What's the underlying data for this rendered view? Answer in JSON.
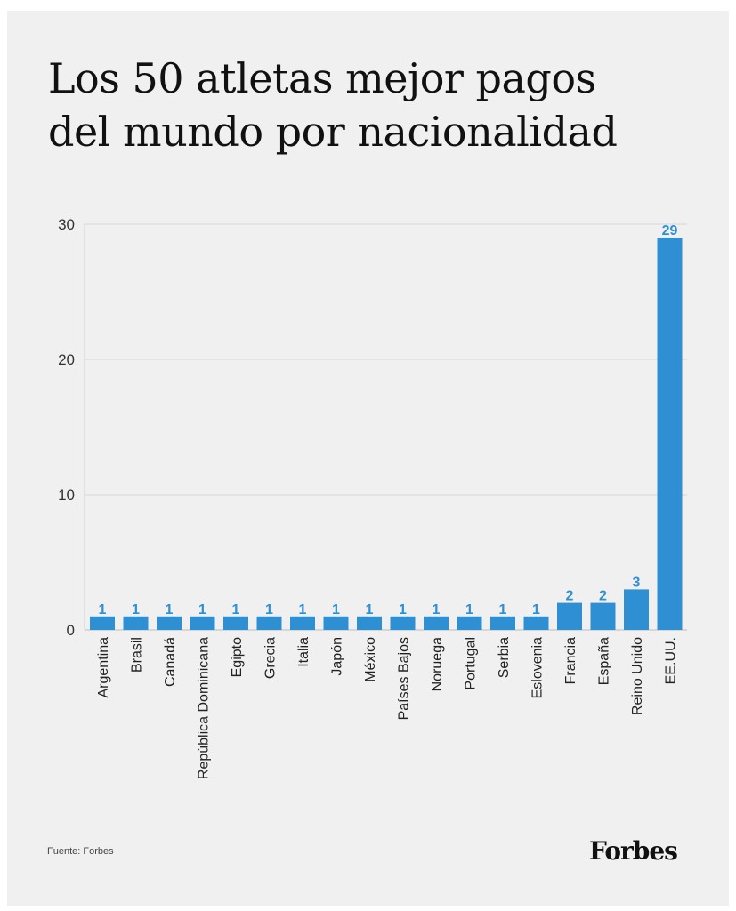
{
  "header": {
    "title_line1": "Los 50 atletas mejor pagos",
    "title_line2": "del mundo por nacionalidad"
  },
  "footer": {
    "source": "Fuente: Forbes",
    "logo": "Forbes"
  },
  "colors": {
    "bar": "#2e8fd3",
    "label": "#2e8fd3",
    "grid": "#d6d6d6",
    "axis_text": "#333333"
  },
  "chart_data": {
    "type": "bar",
    "categories": [
      "Argentina",
      "Brasil",
      "Canadá",
      "República Dominicana",
      "Egipto",
      "Grecia",
      "Italia",
      "Japón",
      "México",
      "Países Bajos",
      "Noruega",
      "Portugal",
      "Serbia",
      "Eslovenia",
      "Francia",
      "España",
      "Reino Unido",
      "EE.UU."
    ],
    "values": [
      1,
      1,
      1,
      1,
      1,
      1,
      1,
      1,
      1,
      1,
      1,
      1,
      1,
      1,
      2,
      2,
      3,
      29
    ],
    "ylim": [
      0,
      30
    ],
    "yticks": [
      0,
      10,
      20,
      30
    ],
    "grid": true
  }
}
